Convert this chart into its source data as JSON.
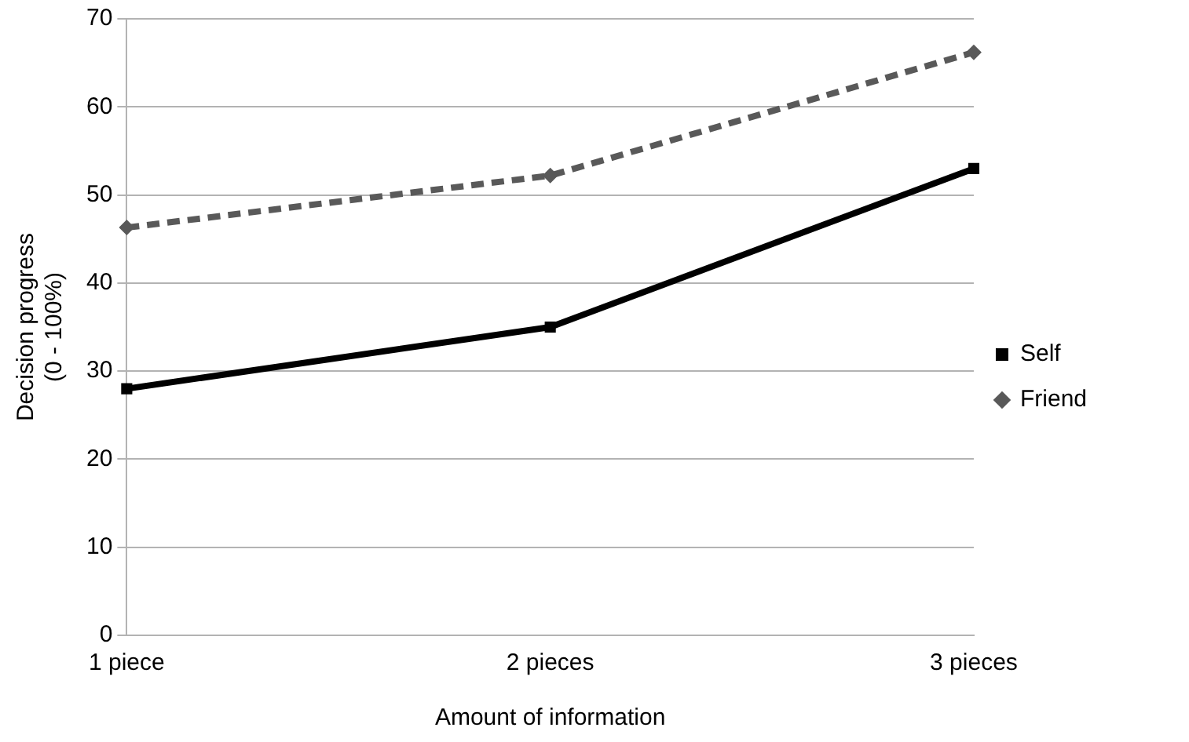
{
  "chart_data": {
    "type": "line",
    "xlabel": "Amount of information",
    "ylabel": "Decision progress\n(0 - 100%)",
    "categories": [
      "1 piece",
      "2 pieces",
      "3 pieces"
    ],
    "series": [
      {
        "name": "Self",
        "color": "#000000",
        "values": [
          28,
          35,
          53
        ],
        "marker": "square",
        "line_style": "solid"
      },
      {
        "name": "Friend",
        "color": "#595959",
        "values": [
          46.3,
          52.2,
          66.2
        ],
        "marker": "diamond",
        "line_style": "dashed"
      }
    ],
    "ylim": [
      0,
      70
    ],
    "yticks": [
      0,
      10,
      20,
      30,
      40,
      50,
      60,
      70
    ],
    "grid": "y",
    "legend": "right"
  }
}
